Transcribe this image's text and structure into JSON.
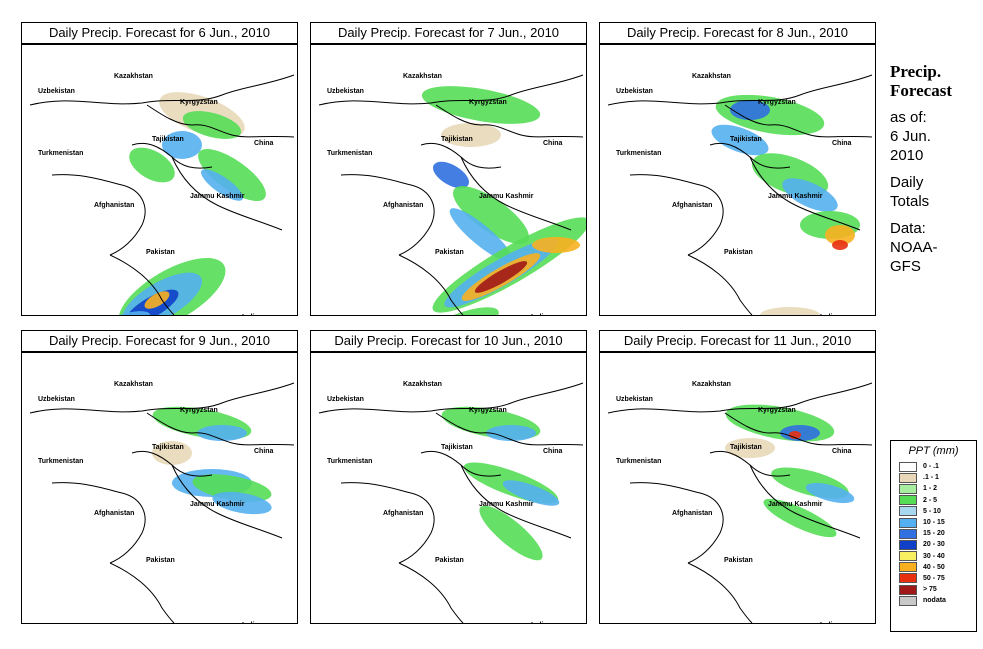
{
  "panels": [
    {
      "title": "Daily Precip. Forecast for  6 Jun., 2010"
    },
    {
      "title": "Daily Precip. Forecast for  7 Jun., 2010"
    },
    {
      "title": "Daily Precip. Forecast for  8 Jun., 2010"
    },
    {
      "title": "Daily Precip. Forecast for  9 Jun., 2010"
    },
    {
      "title": "Daily Precip. Forecast for  10 Jun., 2010"
    },
    {
      "title": "Daily Precip. Forecast for  11 Jun., 2010"
    }
  ],
  "map_labels": {
    "kazakhstan": "Kazakhstan",
    "uzbekistan": "Uzbekistan",
    "kyrgyzstan": "Kyrgyzstan",
    "tajikistan": "Tajikistan",
    "turkmenistan": "Turkmenistan",
    "china": "China",
    "afghanistan": "Afghanistan",
    "jammu_kashmir": "Jammu Kashmir",
    "pakistan": "Pakistan",
    "india": "India"
  },
  "side": {
    "title_line1": "Precip.",
    "title_line2": "Forecast",
    "asof_line1": "as of:",
    "asof_line2": "6 Jun.",
    "asof_line3": "2010",
    "totals_line1": "Daily",
    "totals_line2": "Totals",
    "data_line1": "Data:",
    "data_line2": "NOAA-",
    "data_line3": "GFS"
  },
  "legend": {
    "title": "PPT (mm)",
    "items": [
      {
        "label": "0 - .1",
        "color": "#ffffff"
      },
      {
        "label": ".1 - 1",
        "color": "#e8d8b8"
      },
      {
        "label": "1 - 2",
        "color": "#a8eea0"
      },
      {
        "label": "2 - 5",
        "color": "#55dd55"
      },
      {
        "label": "5 - 10",
        "color": "#a8d8f0"
      },
      {
        "label": "10 - 15",
        "color": "#55b0f0"
      },
      {
        "label": "15 - 20",
        "color": "#3070e0"
      },
      {
        "label": "20 - 30",
        "color": "#1040c8"
      },
      {
        "label": "30 - 40",
        "color": "#f8f060"
      },
      {
        "label": "40 - 50",
        "color": "#f8b020"
      },
      {
        "label": "50 - 75",
        "color": "#e83010"
      },
      {
        "label": "> 75",
        "color": "#a01818"
      },
      {
        "label": "nodata",
        "color": "#c8c8c8"
      }
    ]
  }
}
